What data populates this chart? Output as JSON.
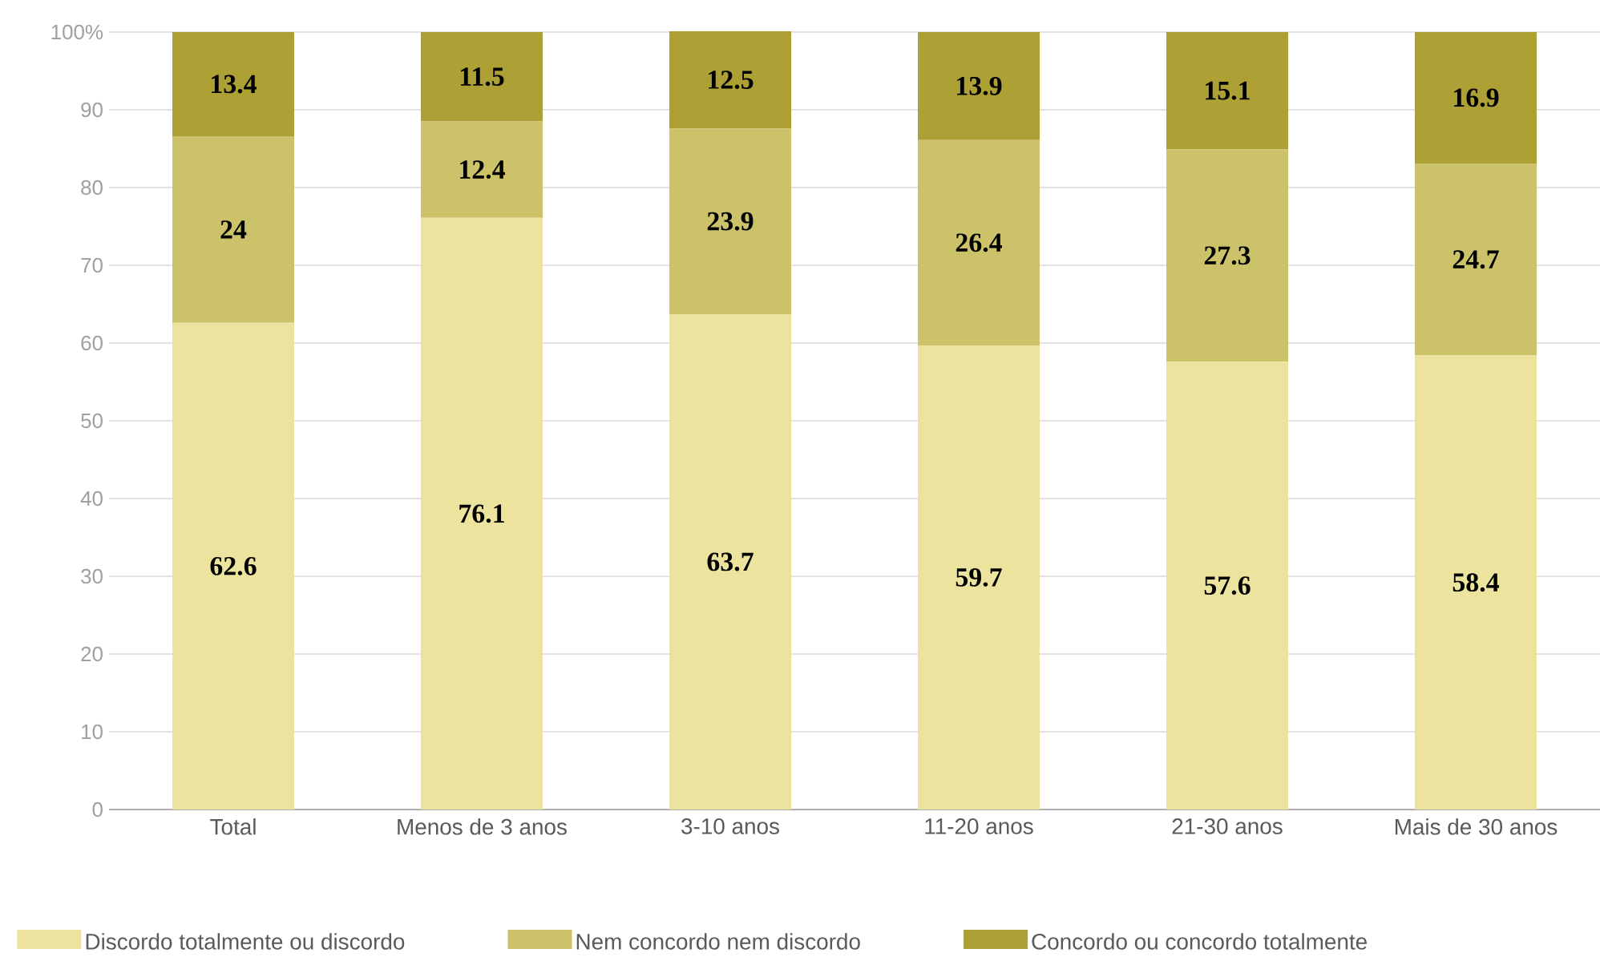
{
  "chart_data": {
    "type": "bar",
    "stacked": true,
    "categories": [
      "Total",
      "Menos de 3 anos",
      "3-10 anos",
      "11-20 anos",
      "21-30 anos",
      "Mais de 30 anos"
    ],
    "series": [
      {
        "name": "Discordo totalmente ou discordo",
        "color": "#ebe39e",
        "values": [
          62.6,
          76.1,
          63.7,
          59.7,
          57.6,
          58.4
        ]
      },
      {
        "name": "Nem concordo nem discordo",
        "color": "#cbc26a",
        "values": [
          24,
          12.4,
          23.9,
          26.4,
          27.3,
          24.7
        ]
      },
      {
        "name": "Concordo ou concordo totalmente",
        "color": "#ada035",
        "values": [
          13.4,
          11.5,
          12.5,
          13.9,
          15.1,
          16.9
        ]
      }
    ],
    "ylim": [
      0,
      100
    ],
    "yticks": [
      0,
      10,
      20,
      30,
      40,
      50,
      60,
      70,
      80,
      90,
      {
        "value": 100,
        "label": "100%"
      }
    ],
    "grid": "y",
    "legend": "bottom",
    "data_labels": true
  }
}
